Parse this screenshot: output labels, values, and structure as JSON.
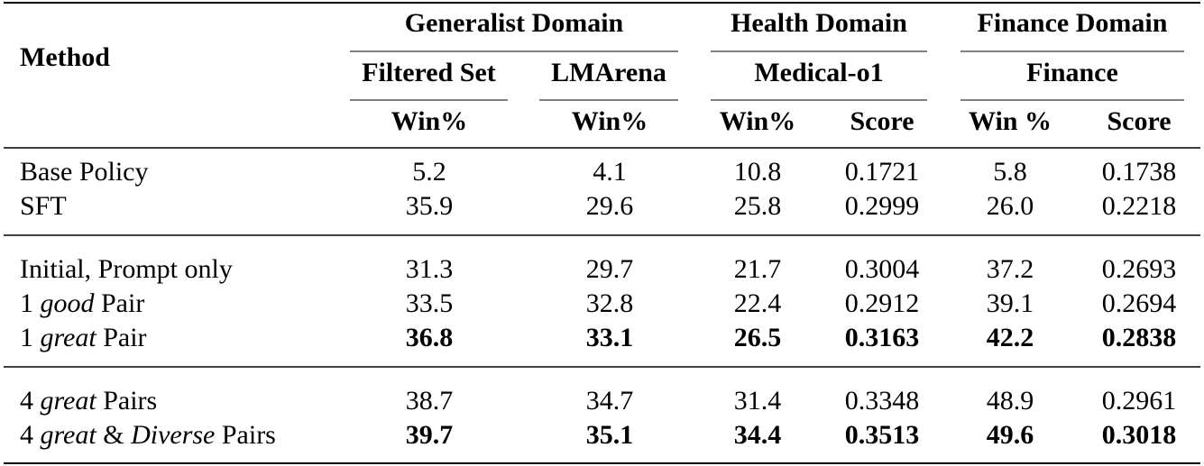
{
  "header": {
    "method": "Method",
    "groups": [
      {
        "label": "Generalist Domain",
        "subgroups": [
          {
            "label": "Filtered Set",
            "metrics": [
              "Win%"
            ]
          },
          {
            "label": "LMArena",
            "metrics": [
              "Win%"
            ]
          }
        ]
      },
      {
        "label": "Health Domain",
        "subgroups": [
          {
            "label": "Medical-o1",
            "metrics": [
              "Win%",
              "Score"
            ]
          }
        ]
      },
      {
        "label": "Finance Domain",
        "subgroups": [
          {
            "label": "Finance",
            "metrics": [
              "Win %",
              "Score"
            ]
          }
        ]
      }
    ]
  },
  "sections": [
    {
      "rows": [
        {
          "method": [
            {
              "text": "Base Policy"
            }
          ],
          "values": [
            "5.2",
            "4.1",
            "10.8",
            "0.1721",
            "5.8",
            "0.1738"
          ],
          "bold": false
        },
        {
          "method": [
            {
              "text": "SFT"
            }
          ],
          "values": [
            "35.9",
            "29.6",
            "25.8",
            "0.2999",
            "26.0",
            "0.2218"
          ],
          "bold": false
        }
      ]
    },
    {
      "rows": [
        {
          "method": [
            {
              "text": "Initial, Prompt only"
            }
          ],
          "values": [
            "31.3",
            "29.7",
            "21.7",
            "0.3004",
            "37.2",
            "0.2693"
          ],
          "bold": false
        },
        {
          "method": [
            {
              "text": "1 "
            },
            {
              "text": "good",
              "style": "italic"
            },
            {
              "text": " Pair"
            }
          ],
          "values": [
            "33.5",
            "32.8",
            "22.4",
            "0.2912",
            "39.1",
            "0.2694"
          ],
          "bold": false
        },
        {
          "method": [
            {
              "text": "1 "
            },
            {
              "text": "great",
              "style": "italic"
            },
            {
              "text": " Pair"
            }
          ],
          "values": [
            "36.8",
            "33.1",
            "26.5",
            "0.3163",
            "42.2",
            "0.2838"
          ],
          "bold": true
        }
      ]
    },
    {
      "rows": [
        {
          "method": [
            {
              "text": "4 "
            },
            {
              "text": "great",
              "style": "italic"
            },
            {
              "text": " Pairs"
            }
          ],
          "values": [
            "38.7",
            "34.7",
            "31.4",
            "0.3348",
            "48.9",
            "0.2961"
          ],
          "bold": false
        },
        {
          "method": [
            {
              "text": "4 "
            },
            {
              "text": "great",
              "style": "italic"
            },
            {
              "text": " & "
            },
            {
              "text": "Diverse",
              "style": "italic"
            },
            {
              "text": " Pairs"
            }
          ],
          "values": [
            "39.7",
            "35.1",
            "34.4",
            "0.3513",
            "49.6",
            "0.3018"
          ],
          "bold": true
        }
      ]
    }
  ]
}
